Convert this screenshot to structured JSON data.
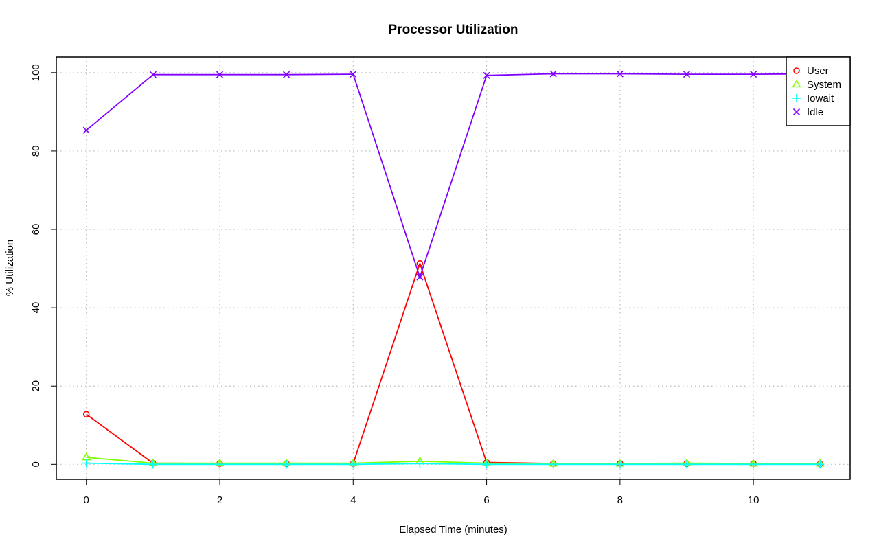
{
  "chart_data": {
    "type": "line",
    "title": "Processor Utilization",
    "xlabel": "Elapsed Time (minutes)",
    "ylabel": "% Utilization",
    "xlim": [
      -0.45,
      11.45
    ],
    "ylim": [
      -3.8,
      104
    ],
    "x_ticks": [
      0,
      2,
      4,
      6,
      8,
      10
    ],
    "x_tick_labels": [
      "0",
      "2",
      "4",
      "6",
      "8",
      "10"
    ],
    "y_ticks": [
      0,
      20,
      40,
      60,
      80,
      100
    ],
    "y_tick_labels": [
      "0",
      "20",
      "40",
      "60",
      "80",
      "100"
    ],
    "grid": true,
    "legend_position": "top-right",
    "x": [
      0,
      1,
      2,
      3,
      4,
      5,
      6,
      7,
      8,
      9,
      10,
      11
    ],
    "series": [
      {
        "name": "User",
        "color": "#ff0000",
        "marker": "circle",
        "values": [
          12.8,
          0.3,
          0.2,
          0.2,
          0.2,
          51.3,
          0.5,
          0.2,
          0.2,
          0.2,
          0.2,
          0.1
        ]
      },
      {
        "name": "System",
        "color": "#80ff00",
        "marker": "triangle",
        "values": [
          1.8,
          0.3,
          0.3,
          0.3,
          0.3,
          0.8,
          0.3,
          0.2,
          0.2,
          0.3,
          0.2,
          0.2
        ]
      },
      {
        "name": "Iowait",
        "color": "#00ffff",
        "marker": "plus",
        "values": [
          0.3,
          0.0,
          0.0,
          0.0,
          0.0,
          0.2,
          0.0,
          0.0,
          0.0,
          0.0,
          0.0,
          0.0
        ]
      },
      {
        "name": "Idle",
        "color": "#8000ff",
        "marker": "cross",
        "values": [
          85.3,
          99.5,
          99.5,
          99.5,
          99.6,
          47.8,
          99.3,
          99.7,
          99.7,
          99.6,
          99.6,
          99.7
        ]
      }
    ]
  }
}
